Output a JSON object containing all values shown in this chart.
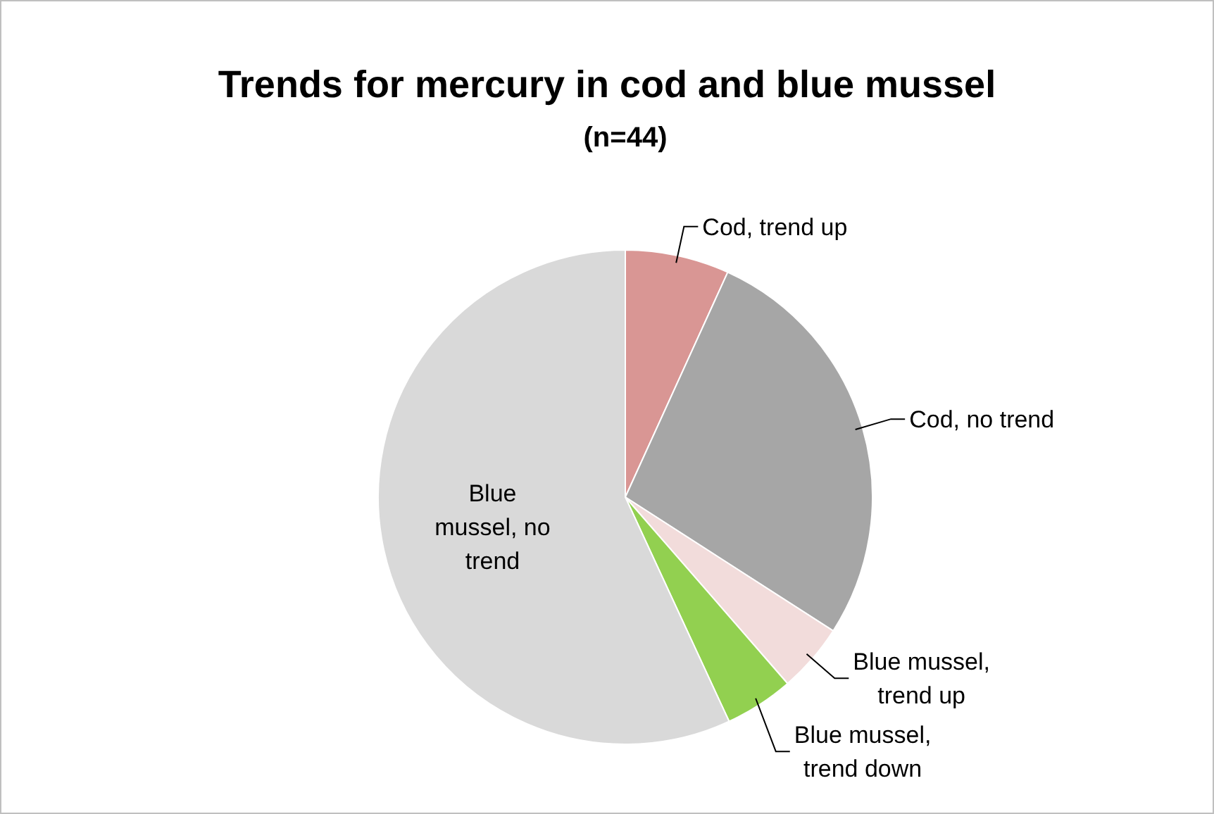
{
  "chart_data": {
    "type": "pie",
    "title": "Trends for mercury in cod and blue mussel",
    "subtitle": "(n=44)",
    "categories": [
      "Cod, trend up",
      "Cod, no trend",
      "Blue mussel, trend up",
      "Blue mussel, trend down",
      "Blue mussel, no trend"
    ],
    "values": [
      6.8,
      27.3,
      4.5,
      4.5,
      56.9
    ],
    "colors": [
      "#d99694",
      "#a6a6a6",
      "#f2dcdb",
      "#92d050",
      "#d9d9d9"
    ],
    "legend": false
  }
}
